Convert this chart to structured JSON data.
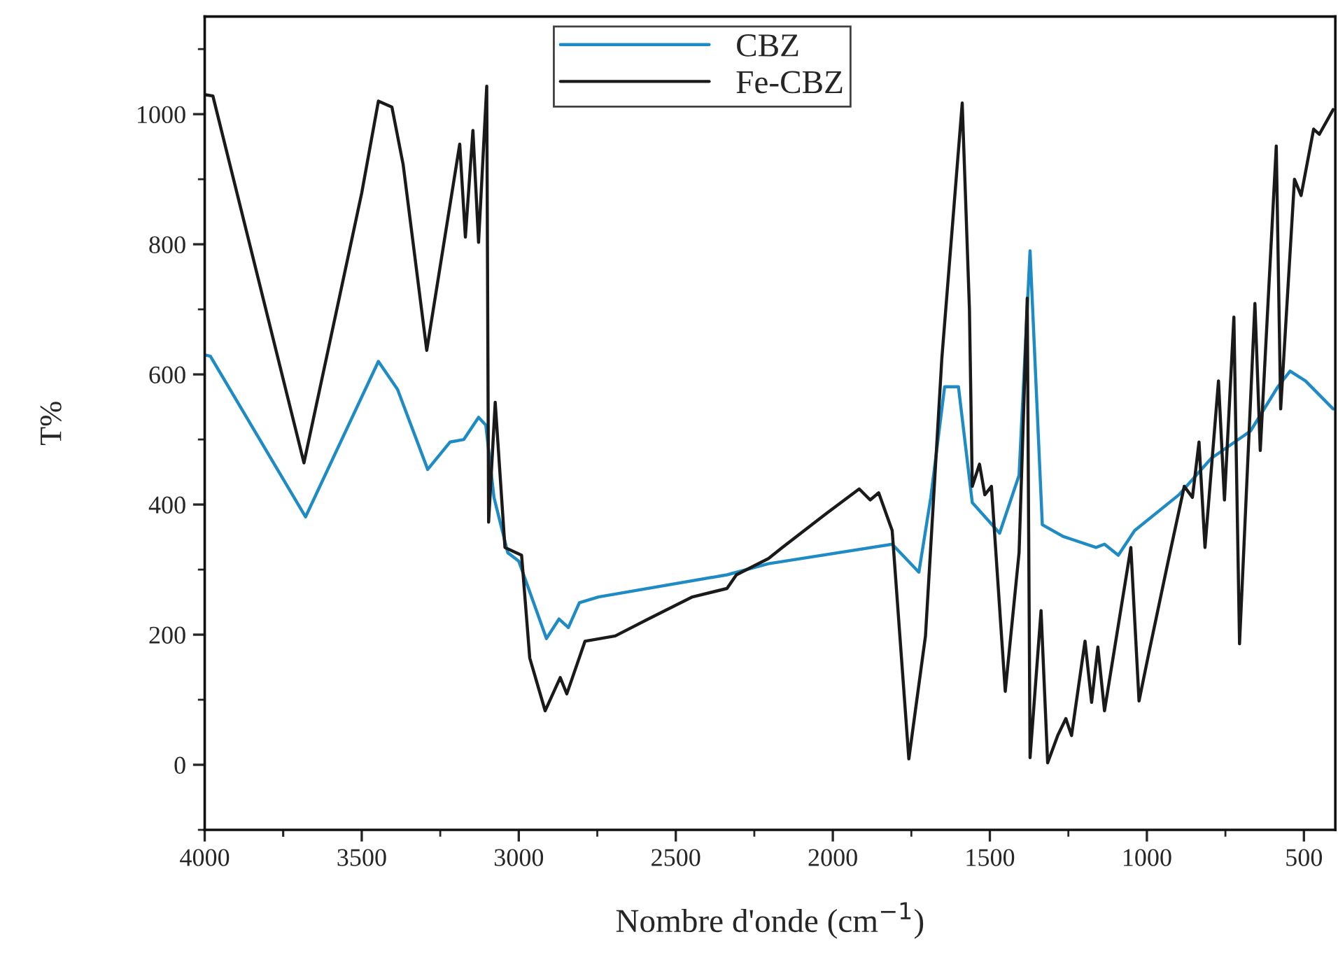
{
  "chart_data": {
    "type": "line",
    "xlabel": "Nombre d'onde (cm$^{−1}$)",
    "ylabel": "T%",
    "xlim": [
      4000,
      400
    ],
    "xticks": [
      4000,
      3500,
      3000,
      2500,
      2000,
      1500,
      1000,
      500
    ],
    "ylim": [
      -100,
      1150
    ],
    "yticks": [
      0,
      200,
      400,
      600,
      800,
      1000
    ],
    "grid": false,
    "legend": "top",
    "marker": "none",
    "line_style": "solid",
    "series": [
      {
        "name": "CBZ",
        "color": "#1f8bc4",
        "x": [
          4000,
          3982,
          3679,
          3447,
          3386,
          3290,
          3219,
          3175,
          3128,
          3105,
          3079,
          3035,
          3000,
          2912,
          2872,
          2842,
          2807,
          2746,
          2337,
          2205,
          1811,
          1726,
          1688,
          1644,
          1600,
          1556,
          1469,
          1407,
          1372,
          1333,
          1267,
          1162,
          1135,
          1091,
          1039,
          898,
          795,
          670,
          583,
          544,
          495,
          407
        ],
        "values": [
          630,
          628,
          381,
          620,
          577,
          454,
          496,
          500,
          534,
          522,
          411,
          326,
          313,
          194,
          224,
          211,
          249,
          258,
          292,
          309,
          339,
          296,
          411,
          581,
          581,
          403,
          356,
          445,
          790,
          369,
          351,
          334,
          339,
          322,
          360,
          415,
          471,
          513,
          581,
          605,
          590,
          547
        ]
      },
      {
        "name": "Fe-CBZ",
        "color": "#1a1a1a",
        "x": [
          4000,
          3974,
          3684,
          3500,
          3447,
          3404,
          3368,
          3293,
          3188,
          3170,
          3146,
          3128,
          3102,
          3096,
          3075,
          3044,
          2991,
          2965,
          2916,
          2868,
          2847,
          2789,
          2693,
          2588,
          2447,
          2337,
          2307,
          2205,
          2161,
          2021,
          1916,
          1881,
          1854,
          1811,
          1758,
          1705,
          1653,
          1588,
          1565,
          1556,
          1533,
          1516,
          1495,
          1451,
          1407,
          1381,
          1372,
          1337,
          1316,
          1284,
          1258,
          1240,
          1197,
          1176,
          1156,
          1135,
          1051,
          1025,
          995,
          934,
          881,
          855,
          834,
          815,
          772,
          753,
          723,
          705,
          656,
          639,
          588,
          574,
          530,
          509,
          469,
          451,
          407
        ],
        "values": [
          1030,
          1028,
          464,
          879,
          1020,
          1011,
          922,
          637,
          954,
          811,
          975,
          803,
          1043,
          373,
          557,
          334,
          322,
          164,
          83,
          134,
          109,
          190,
          198,
          224,
          258,
          271,
          292,
          317,
          334,
          386,
          424,
          407,
          418,
          360,
          9,
          198,
          624,
          1017,
          700,
          428,
          462,
          415,
          428,
          113,
          326,
          717,
          11,
          237,
          3,
          45,
          71,
          45,
          190,
          96,
          181,
          83,
          334,
          98,
          169,
          309,
          428,
          411,
          496,
          334,
          590,
          407,
          688,
          186,
          709,
          483,
          951,
          547,
          900,
          875,
          977,
          969,
          1007
        ]
      }
    ]
  }
}
